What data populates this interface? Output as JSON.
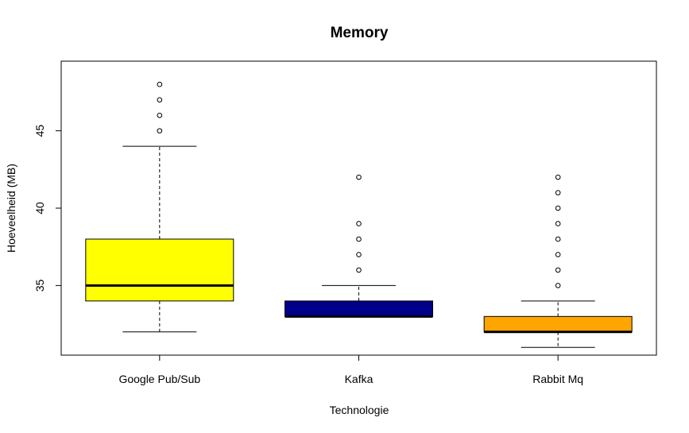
{
  "chart_data": {
    "type": "boxplot",
    "title": "Memory",
    "xlabel": "Technologie",
    "ylabel": "Hoeveelheid (MB)",
    "ylim": [
      30.5,
      49.5
    ],
    "y_ticks": [
      35,
      40,
      45
    ],
    "grid": false,
    "categories": [
      "Google Pub/Sub",
      "Kafka",
      "Rabbit Mq"
    ],
    "boxes": [
      {
        "category": "Google Pub/Sub",
        "color": "#FFFF00",
        "whisker_low": 32,
        "q1": 34,
        "median": 35,
        "q3": 38,
        "whisker_high": 44,
        "outliers": [
          45,
          46,
          47,
          48
        ]
      },
      {
        "category": "Kafka",
        "color": "#00008B",
        "whisker_low": 33,
        "q1": 33,
        "median": 33,
        "q3": 34,
        "whisker_high": 35,
        "outliers": [
          36,
          37,
          38,
          39,
          42
        ]
      },
      {
        "category": "Rabbit Mq",
        "color": "#FFA500",
        "whisker_low": 31,
        "q1": 32,
        "median": 32,
        "q3": 33,
        "whisker_high": 34,
        "outliers": [
          35,
          36,
          37,
          38,
          39,
          40,
          41,
          42
        ]
      }
    ]
  }
}
